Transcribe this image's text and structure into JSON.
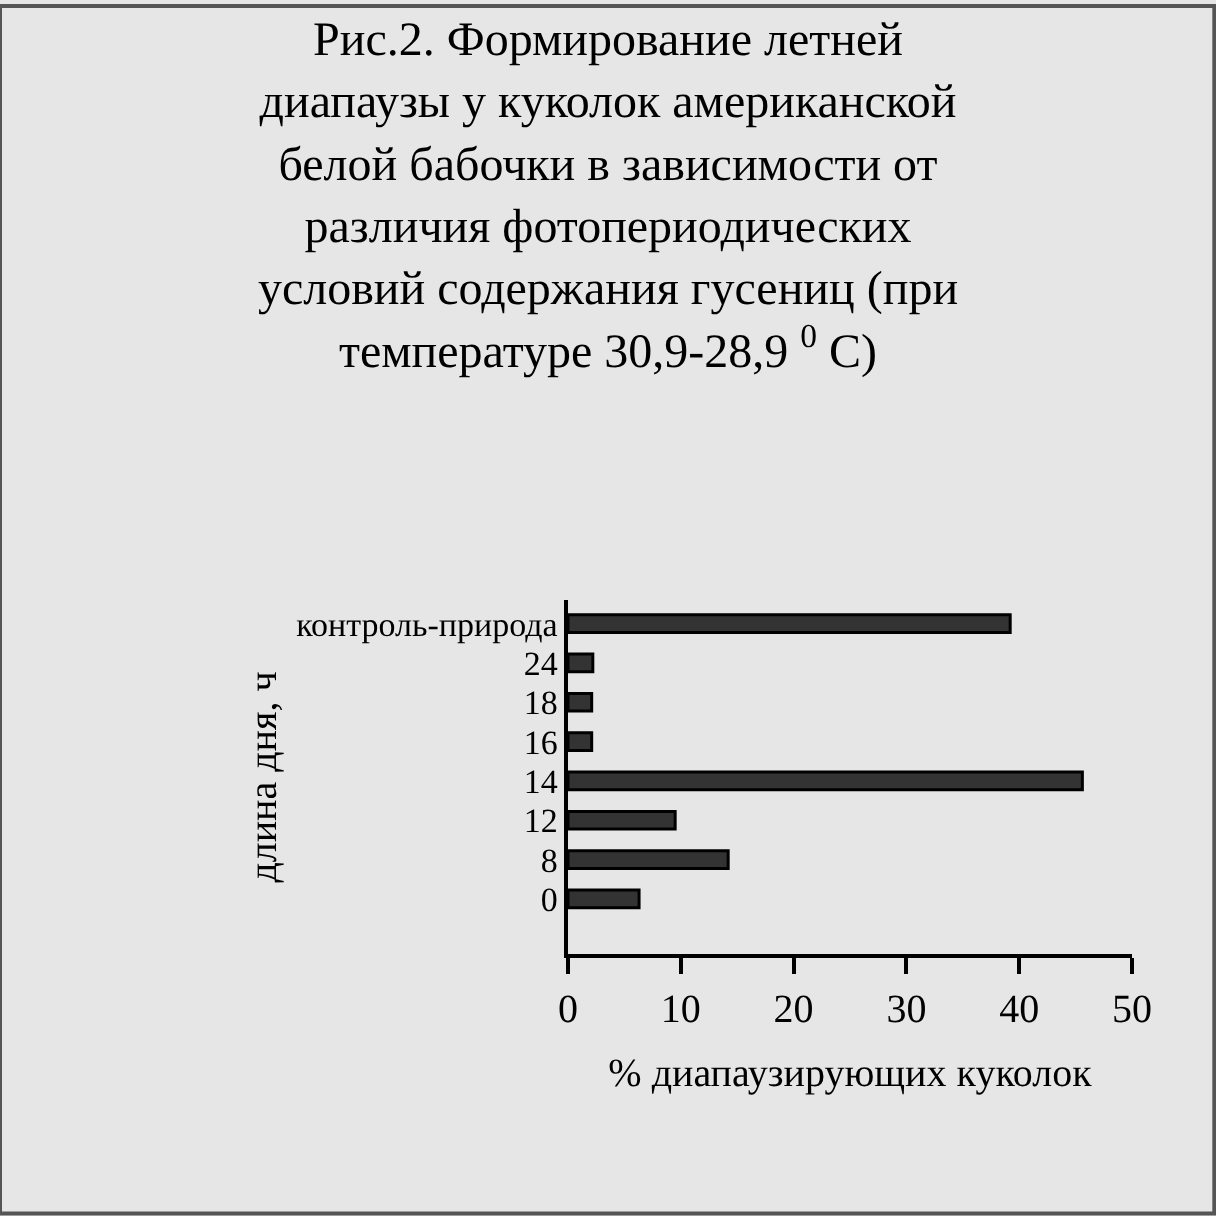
{
  "chart_data": {
    "type": "bar",
    "orientation": "horizontal",
    "title": "Рис.2. Формирование летней\nдиапаузы у куколок американской\nбелой бабочки в зависимости от\nразличия фотопериодических\nусловий содержания гусениц (при\nтемпературе 30,9-28,9 $^{0}$ С)",
    "xlabel": "% диапаузирующих куколок",
    "ylabel": "длина дня, ч",
    "categories": [
      "контроль-природа",
      "24",
      "18",
      "16",
      "14",
      "12",
      "8",
      "0"
    ],
    "values": [
      39.2,
      2.2,
      2.1,
      2.1,
      45.6,
      9.5,
      14.2,
      6.3
    ],
    "color": "#333333",
    "xlim": [
      0,
      50
    ],
    "xticks": [
      0,
      10,
      20,
      30,
      40,
      50
    ],
    "grid": false,
    "legend": false
  }
}
